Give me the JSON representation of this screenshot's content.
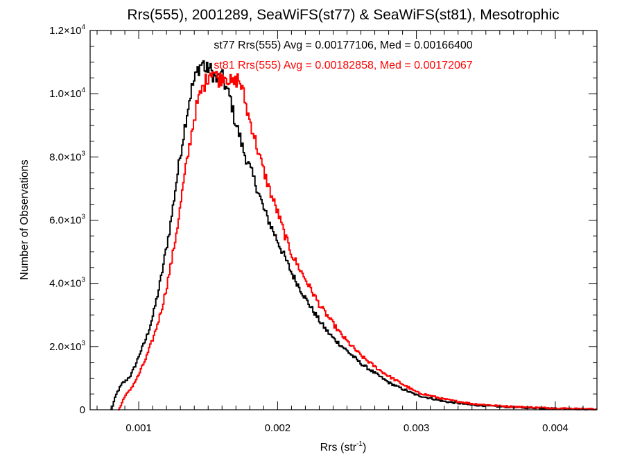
{
  "chart_data": {
    "type": "line",
    "title": "Rrs(555), 2001289, SeaWiFS(st77) & SeaWiFS(st81), Mesotrophic",
    "xlabel": "Rrs (str",
    "xlabel_sup": "-1",
    "xlabel_close": ")",
    "ylabel": "Number of Observations",
    "xlim": [
      0.00065,
      0.0043
    ],
    "ylim": [
      0,
      12000
    ],
    "grid": false,
    "x_ticks": [
      {
        "value": 0.001,
        "label": "0.001"
      },
      {
        "value": 0.002,
        "label": "0.002"
      },
      {
        "value": 0.003,
        "label": "0.003"
      },
      {
        "value": 0.004,
        "label": "0.004"
      }
    ],
    "y_ticks": [
      {
        "value": 0,
        "mant": "0",
        "exp": ""
      },
      {
        "value": 2000,
        "mant": "2.0×10",
        "exp": "3"
      },
      {
        "value": 4000,
        "mant": "4.0×10",
        "exp": "3"
      },
      {
        "value": 6000,
        "mant": "6.0×10",
        "exp": "3"
      },
      {
        "value": 8000,
        "mant": "8.0×10",
        "exp": "3"
      },
      {
        "value": 10000,
        "mant": "1.0×10",
        "exp": "4"
      },
      {
        "value": 12000,
        "mant": "1.2×10",
        "exp": "4"
      }
    ],
    "annotations": [
      {
        "text": "st77 Rrs(555) Avg = 0.00177106, Med = 0.00166400",
        "color": "#000000"
      },
      {
        "text": "st81 Rrs(555) Avg = 0.00182858, Med = 0.00172067",
        "color": "#ff0000"
      }
    ],
    "series": [
      {
        "color": "#000000",
        "x": [
          0.0008,
          0.00082,
          0.00084,
          0.00086,
          0.00088,
          0.0009,
          0.00092,
          0.00094,
          0.00096,
          0.00098,
          0.001,
          0.00102,
          0.00104,
          0.00106,
          0.00108,
          0.0011,
          0.00112,
          0.00114,
          0.00116,
          0.00118,
          0.0012,
          0.00122,
          0.00124,
          0.00126,
          0.00128,
          0.0013,
          0.00132,
          0.00134,
          0.00136,
          0.00138,
          0.0014,
          0.00142,
          0.00144,
          0.00146,
          0.00148,
          0.0015,
          0.00152,
          0.00154,
          0.00156,
          0.00158,
          0.0016,
          0.00162,
          0.00164,
          0.00166,
          0.00168,
          0.0017,
          0.00172,
          0.00175,
          0.0018,
          0.00185,
          0.0019,
          0.00195,
          0.002,
          0.00205,
          0.0021,
          0.00215,
          0.0022,
          0.00225,
          0.0023,
          0.00235,
          0.0024,
          0.0025,
          0.0026,
          0.0027,
          0.0028,
          0.0029,
          0.003,
          0.0032,
          0.0034,
          0.0036,
          0.0038,
          0.004,
          0.0042,
          0.0043
        ],
        "y": [
          0,
          300,
          550,
          700,
          850,
          900,
          1000,
          1100,
          1300,
          1500,
          1750,
          1950,
          2150,
          2400,
          2700,
          3000,
          3400,
          3800,
          4250,
          4750,
          5250,
          5750,
          6350,
          7000,
          7600,
          8200,
          8750,
          9300,
          9800,
          10200,
          10450,
          10750,
          10900,
          11000,
          10700,
          10850,
          10700,
          10550,
          10400,
          10600,
          10500,
          10250,
          10000,
          9800,
          9300,
          9000,
          8700,
          8200,
          7600,
          7000,
          6300,
          5800,
          5300,
          4800,
          4300,
          3900,
          3500,
          3150,
          2800,
          2500,
          2250,
          1850,
          1450,
          1150,
          850,
          650,
          460,
          260,
          150,
          100,
          60,
          40,
          20,
          10
        ]
      },
      {
        "color": "#ff0000",
        "x": [
          0.00085,
          0.00087,
          0.00089,
          0.00091,
          0.00093,
          0.00095,
          0.00097,
          0.00099,
          0.00101,
          0.00103,
          0.00105,
          0.00107,
          0.00109,
          0.00111,
          0.00113,
          0.00115,
          0.00117,
          0.00119,
          0.00121,
          0.00123,
          0.00125,
          0.00127,
          0.00129,
          0.00131,
          0.00133,
          0.00135,
          0.00137,
          0.00139,
          0.00141,
          0.00143,
          0.00145,
          0.00147,
          0.00149,
          0.00151,
          0.00153,
          0.00155,
          0.00157,
          0.00159,
          0.00161,
          0.00163,
          0.00165,
          0.00167,
          0.00169,
          0.00171,
          0.00173,
          0.00175,
          0.00178,
          0.00182,
          0.00186,
          0.0019,
          0.00195,
          0.002,
          0.00205,
          0.0021,
          0.00215,
          0.0022,
          0.00225,
          0.0023,
          0.00235,
          0.0024,
          0.00245,
          0.0025,
          0.0026,
          0.0027,
          0.0028,
          0.0029,
          0.003,
          0.0032,
          0.0034,
          0.0036,
          0.0038,
          0.004,
          0.0042,
          0.0043
        ],
        "y": [
          0,
          150,
          400,
          500,
          600,
          750,
          900,
          1050,
          1250,
          1450,
          1650,
          1900,
          2150,
          2400,
          2700,
          3000,
          3350,
          3750,
          4200,
          4650,
          5150,
          5700,
          6250,
          6900,
          7500,
          8050,
          8600,
          9100,
          9550,
          9850,
          10100,
          10300,
          10500,
          10700,
          10750,
          10600,
          10450,
          10500,
          10600,
          10550,
          10400,
          10300,
          10350,
          10500,
          10300,
          10000,
          9400,
          8800,
          8100,
          7500,
          6800,
          6200,
          5500,
          4900,
          4500,
          4100,
          3700,
          3300,
          3000,
          2700,
          2400,
          2150,
          1700,
          1350,
          1050,
          800,
          550,
          330,
          190,
          120,
          80,
          50,
          30,
          15
        ]
      }
    ]
  }
}
